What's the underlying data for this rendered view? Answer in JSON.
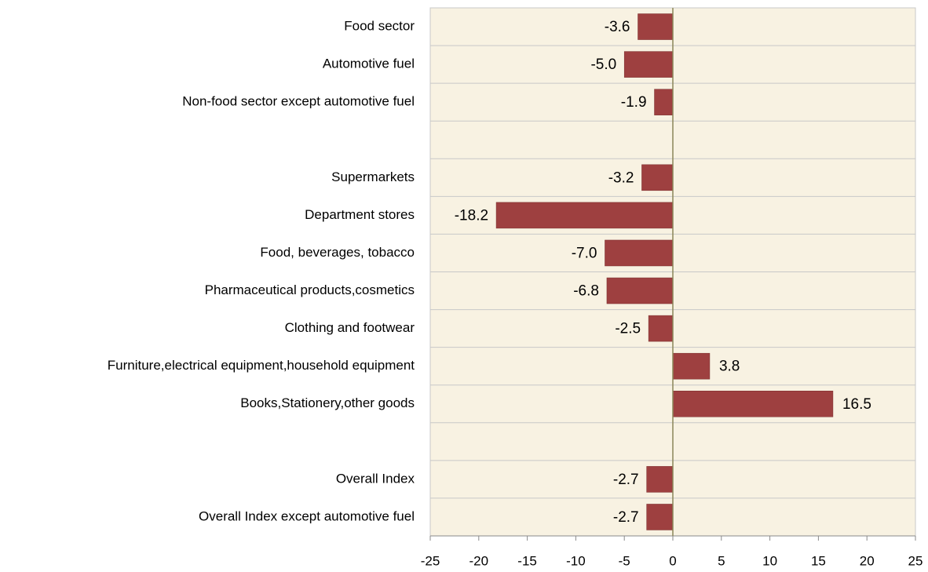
{
  "chart_data": {
    "type": "bar",
    "orientation": "horizontal",
    "categories": [
      "Food sector",
      "Automotive fuel",
      "Non-food sector except automotive fuel",
      null,
      "Supermarkets",
      "Department stores",
      "Food, beverages, tobacco",
      "Pharmaceutical products,cosmetics",
      "Clothing and footwear",
      "Furniture,electrical equipment,household equipment",
      "Books,Stationery,other goods",
      null,
      "Overall Index",
      "Overall Index except automotive fuel"
    ],
    "values": [
      -3.6,
      -5.0,
      -1.9,
      null,
      -3.2,
      -18.2,
      -7.0,
      -6.8,
      -2.5,
      3.8,
      16.5,
      null,
      -2.7,
      -2.7
    ],
    "value_labels": [
      "-3.6",
      "-5.0",
      "-1.9",
      null,
      "-3.2",
      "-18.2",
      "-7.0",
      "-6.8",
      "-2.5",
      "3.8",
      "16.5",
      null,
      "-2.7",
      "-2.7"
    ],
    "color": "#9e4040",
    "xlim": [
      -25,
      25
    ],
    "xticks": [
      -25,
      -20,
      -15,
      -10,
      -5,
      0,
      5,
      10,
      15,
      20,
      25
    ],
    "grid": true
  }
}
